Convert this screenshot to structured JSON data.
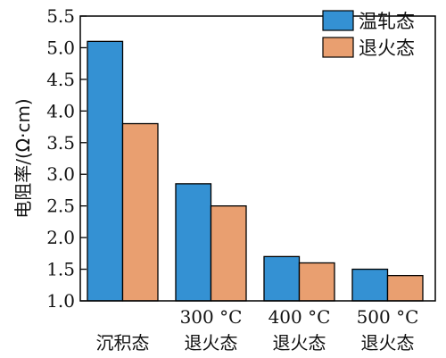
{
  "chart_data": {
    "type": "bar",
    "categories": [
      [
        "沉积态"
      ],
      [
        "300 °C",
        "退火态"
      ],
      [
        "400 °C",
        "退火态"
      ],
      [
        "500 °C",
        "退火态"
      ]
    ],
    "series": [
      {
        "name": "温轧态",
        "values": [
          5.1,
          2.85,
          1.7,
          1.5
        ],
        "color": "#3491d3"
      },
      {
        "name": "退火态",
        "values": [
          3.8,
          2.5,
          1.6,
          1.4
        ],
        "color": "#e99f70"
      }
    ],
    "title": "",
    "xlabel": "",
    "ylabel": "电阻率/(Ω·cm)",
    "ylim": [
      1.0,
      5.5
    ],
    "yticks": [
      "1.0",
      "1.5",
      "2.0",
      "2.5",
      "3.0",
      "3.5",
      "4.0",
      "4.5",
      "5.0",
      "5.5"
    ],
    "legend_position": "top-right",
    "grid": false
  }
}
